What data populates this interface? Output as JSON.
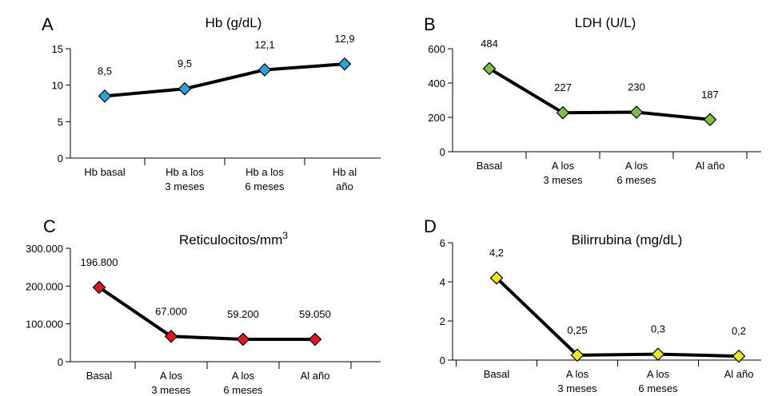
{
  "chart_data": [
    {
      "panel": "A",
      "type": "line",
      "title": "Hb (g/dL)",
      "categories": [
        [
          "Hb basal"
        ],
        [
          "Hb a los",
          "3 meses"
        ],
        [
          "Hb a los",
          "6 meses"
        ],
        [
          "Hb al",
          "año"
        ]
      ],
      "values": [
        8.5,
        9.5,
        12.1,
        12.9
      ],
      "value_labels": [
        "8,5",
        "9,5",
        "12,1",
        "12,9"
      ],
      "yticks": [
        0,
        5,
        10,
        15
      ],
      "ytick_labels": [
        "0",
        "5",
        "10",
        "15"
      ],
      "ylim": [
        0,
        15
      ],
      "marker_color": "#29a3e0",
      "line_color": "#000000",
      "grid": false
    },
    {
      "panel": "B",
      "type": "line",
      "title": "LDH (U/L)",
      "categories": [
        [
          "Basal"
        ],
        [
          "A los",
          "3 meses"
        ],
        [
          "A los",
          "6 meses"
        ],
        [
          "Al año"
        ]
      ],
      "values": [
        484,
        227,
        230,
        187
      ],
      "value_labels": [
        "484",
        "227",
        "230",
        "187"
      ],
      "yticks": [
        0,
        200,
        400,
        600
      ],
      "ytick_labels": [
        "0",
        "200",
        "400",
        "600"
      ],
      "ylim": [
        0,
        600
      ],
      "marker_color": "#7cc242",
      "line_color": "#000000",
      "grid": false
    },
    {
      "panel": "C",
      "type": "line",
      "title": "Reticulocitos/mm",
      "title_superscript": "3",
      "categories": [
        [
          "Basal"
        ],
        [
          "A los",
          "3 meses"
        ],
        [
          "A los",
          "6 meses"
        ],
        [
          "Al año"
        ]
      ],
      "values": [
        196800,
        67000,
        59200,
        59050
      ],
      "value_labels": [
        "196.800",
        "67.000",
        "59.200",
        "59.050"
      ],
      "yticks": [
        0,
        100000,
        200000,
        300000
      ],
      "ytick_labels": [
        "0",
        "100.000",
        "200.000",
        "300.000"
      ],
      "ylim": [
        0,
        300000
      ],
      "marker_color": "#e3161b",
      "line_color": "#000000",
      "grid": false
    },
    {
      "panel": "D",
      "type": "line",
      "title": "Bilirrubina (mg/dL)",
      "categories": [
        [
          "Basal"
        ],
        [
          "A los",
          "3 meses"
        ],
        [
          "A los",
          "6 meses"
        ],
        [
          "Al año"
        ]
      ],
      "values": [
        4.2,
        0.25,
        0.3,
        0.2
      ],
      "value_labels": [
        "4,2",
        "0,25",
        "0,3",
        "0,2"
      ],
      "yticks": [
        0,
        2,
        4,
        6
      ],
      "ytick_labels": [
        "0",
        "2",
        "4",
        "6"
      ],
      "ylim": [
        0,
        6
      ],
      "marker_color": "#f2e51a",
      "line_color": "#000000",
      "grid": false
    }
  ]
}
